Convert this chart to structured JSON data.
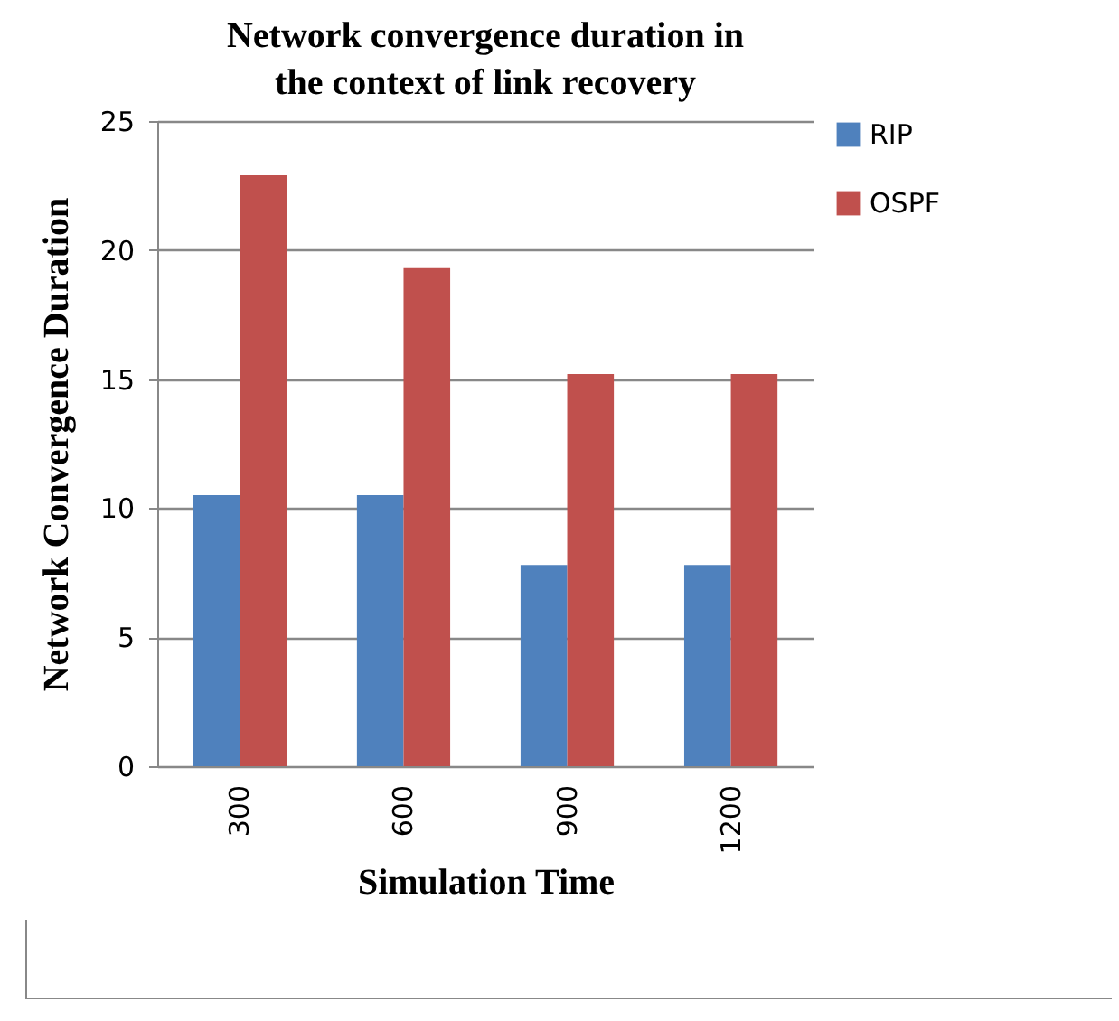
{
  "chart_data": {
    "type": "bar",
    "title": "Network convergence duration in the context of link recovery",
    "xlabel": "Simulation Time",
    "ylabel": "Network Convergence Duration",
    "categories": [
      "300",
      "600",
      "900",
      "1200"
    ],
    "series": [
      {
        "name": "RIP",
        "color": "#4f81bd",
        "values": [
          10.5,
          10.5,
          7.8,
          7.8
        ]
      },
      {
        "name": "OSPF",
        "color": "#c0504d",
        "values": [
          22.9,
          19.3,
          15.2,
          15.2
        ]
      }
    ],
    "ylim": [
      0,
      25
    ],
    "yticks": [
      0,
      5,
      10,
      15,
      20,
      25
    ],
    "grid": "y",
    "legend": "right"
  }
}
